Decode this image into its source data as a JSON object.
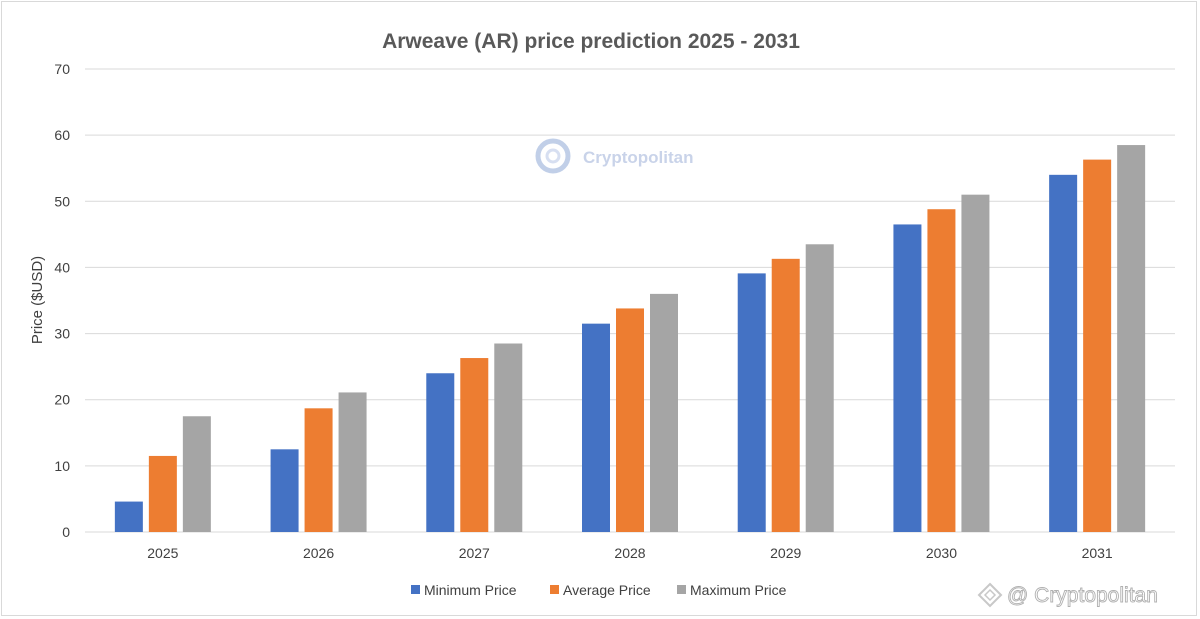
{
  "chart_data": {
    "type": "bar",
    "title": "Arweave (AR) price prediction 2025 - 2031",
    "ylabel": "Price ($USD)",
    "xlabel": "",
    "categories": [
      "2025",
      "2026",
      "2027",
      "2028",
      "2029",
      "2030",
      "2031"
    ],
    "series": [
      {
        "name": "Minimum Price",
        "color": "#4472c4",
        "values": [
          4.6,
          12.5,
          24.0,
          31.5,
          39.1,
          46.5,
          54.0
        ]
      },
      {
        "name": "Average Price",
        "color": "#ed7d31",
        "values": [
          11.5,
          18.7,
          26.3,
          33.8,
          41.3,
          48.8,
          56.3
        ]
      },
      {
        "name": "Maximum Price",
        "color": "#a5a5a5",
        "values": [
          17.5,
          21.1,
          28.5,
          36.0,
          43.5,
          51.0,
          58.5
        ]
      }
    ],
    "ylim": [
      0,
      70
    ],
    "yticks": [
      0,
      10,
      20,
      30,
      40,
      50,
      60,
      70
    ],
    "grid": true,
    "legend": "bottom"
  },
  "watermark": {
    "brand_center": "Cryptopolitan",
    "brand_corner": "@ Cryptopolitan"
  }
}
